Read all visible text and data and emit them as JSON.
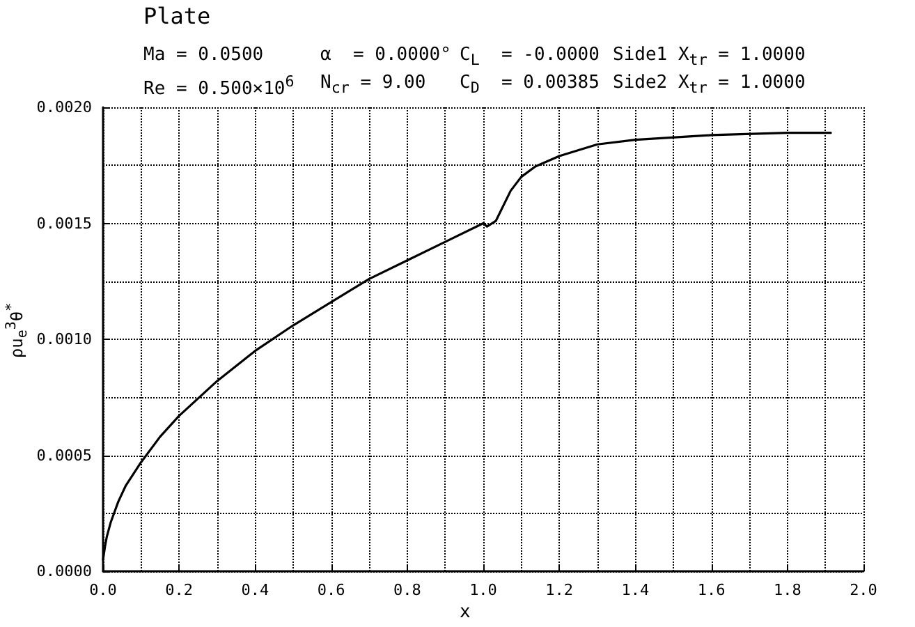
{
  "chart_data": {
    "type": "line",
    "title": "Plate",
    "xlabel": "x",
    "ylabel": "ρu$_{e}$$^{3}$θ$^{*}$",
    "annotations": [
      "Ma = 0.0500",
      "α  = 0.0000°",
      "C$_{L}$  = -0.0000",
      "Side1 X$_{tr}$ = 1.0000",
      "Re = 0.500×10$^{6}$",
      "N$_{cr}$ = 9.00",
      "C$_{D}$  = 0.00385",
      "Side2 X$_{tr}$ = 1.0000"
    ],
    "series": [
      {
        "color": "#000000",
        "x": [
          0,
          0.005,
          0.01,
          0.02,
          0.04,
          0.06,
          0.1,
          0.15,
          0.2,
          0.3,
          0.4,
          0.5,
          0.6,
          0.7,
          0.8,
          0.9,
          1.0,
          1.01,
          1.033,
          1.072,
          1.1,
          1.137,
          1.2,
          1.3,
          1.4,
          1.6,
          1.8,
          1.914
        ],
        "values": [
          5e-05,
          0.000106,
          0.00015,
          0.00021,
          0.0003,
          0.00037,
          0.00047,
          0.00058,
          0.00067,
          0.00082,
          0.00095,
          0.00106,
          0.00116,
          0.00126,
          0.00134,
          0.00142,
          0.0015,
          0.001486,
          0.00151,
          0.00164,
          0.0017,
          0.001745,
          0.00179,
          0.00184,
          0.00186,
          0.00188,
          0.00189,
          0.00189
        ]
      }
    ],
    "xlim": [
      0,
      2
    ],
    "ylim": [
      0,
      0.002
    ],
    "xticks": [
      {
        "value": 0,
        "label": "0.0"
      },
      {
        "value": 0.1,
        "label": null
      },
      {
        "value": 0.2,
        "label": "0.2"
      },
      {
        "value": 0.3,
        "label": null
      },
      {
        "value": 0.4,
        "label": "0.4"
      },
      {
        "value": 0.5,
        "label": null
      },
      {
        "value": 0.6,
        "label": "0.6"
      },
      {
        "value": 0.7,
        "label": null
      },
      {
        "value": 0.8,
        "label": "0.8"
      },
      {
        "value": 0.9,
        "label": null
      },
      {
        "value": 1.0,
        "label": "1.0"
      },
      {
        "value": 1.1,
        "label": null
      },
      {
        "value": 1.2,
        "label": "1.2"
      },
      {
        "value": 1.3,
        "label": null
      },
      {
        "value": 1.4,
        "label": "1.4"
      },
      {
        "value": 1.5,
        "label": null
      },
      {
        "value": 1.6,
        "label": "1.6"
      },
      {
        "value": 1.7,
        "label": null
      },
      {
        "value": 1.8,
        "label": "1.8"
      },
      {
        "value": 1.9,
        "label": null
      },
      {
        "value": 2.0,
        "label": "2.0"
      }
    ],
    "yticks": [
      {
        "value": 0,
        "label": "0.0000"
      },
      {
        "value": 0.00025,
        "label": null
      },
      {
        "value": 0.0005,
        "label": "0.0005"
      },
      {
        "value": 0.00075,
        "label": null
      },
      {
        "value": 0.001,
        "label": "0.0010"
      },
      {
        "value": 0.00125,
        "label": null
      },
      {
        "value": 0.0015,
        "label": "0.0015"
      },
      {
        "value": 0.00175,
        "label": null
      },
      {
        "value": 0.002,
        "label": "0.0020"
      }
    ],
    "grid": true,
    "marker": "none",
    "line_style": "solid"
  }
}
